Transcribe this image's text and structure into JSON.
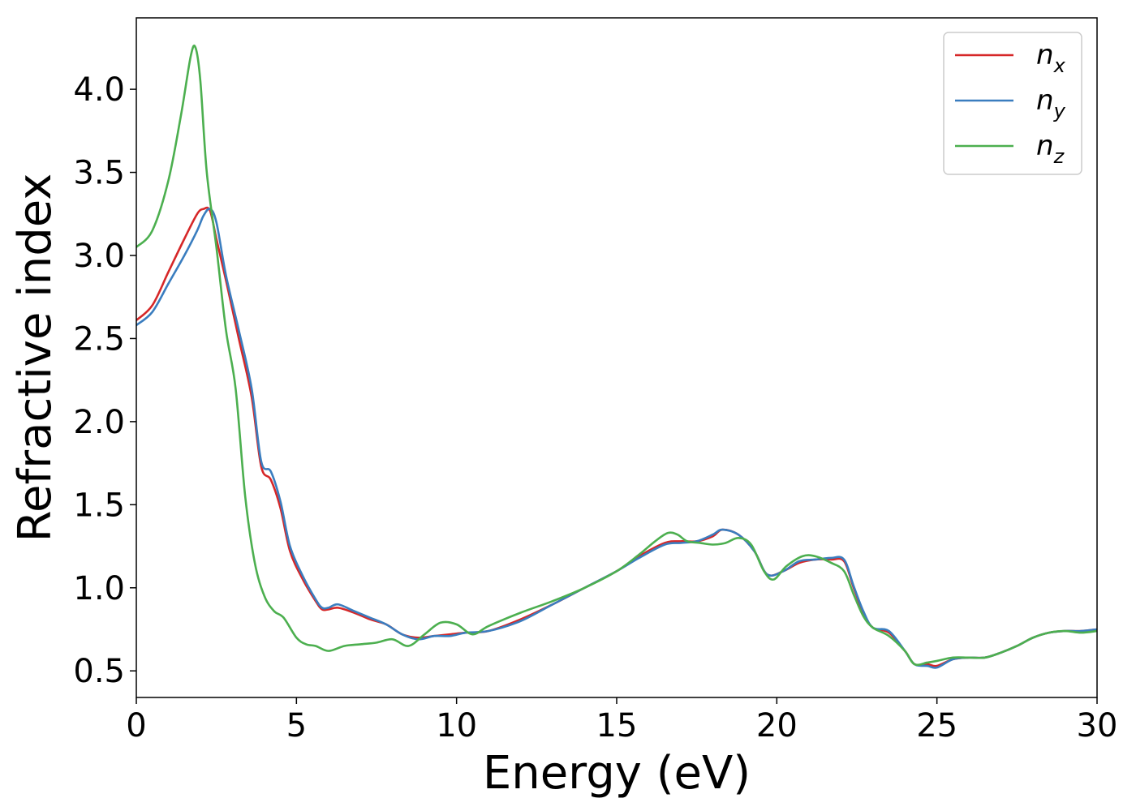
{
  "chart_data": {
    "type": "line",
    "xlabel": "Energy (eV)",
    "ylabel": "Refractive index",
    "xlim": [
      0,
      30
    ],
    "ylim": [
      0.34,
      4.43
    ],
    "xticks": [
      0,
      5,
      10,
      15,
      20,
      25,
      30
    ],
    "yticks": [
      0.5,
      1.0,
      1.5,
      2.0,
      2.5,
      3.0,
      3.5,
      4.0
    ],
    "xtick_labels": [
      "0",
      "5",
      "10",
      "15",
      "20",
      "25",
      "30"
    ],
    "ytick_labels": [
      "0.5",
      "1.0",
      "1.5",
      "2.0",
      "2.5",
      "3.0",
      "3.5",
      "4.0"
    ],
    "grid": false,
    "legend_position": "top-right",
    "series": [
      {
        "key": "nx",
        "legend_base": "n",
        "legend_sub": "x",
        "color": "#d62728",
        "x": [
          0,
          0.5,
          1.0,
          1.5,
          1.9,
          2.1,
          2.3,
          2.5,
          2.8,
          3.2,
          3.6,
          3.9,
          4.2,
          4.5,
          4.8,
          5.2,
          5.6,
          5.8,
          6.0,
          6.3,
          6.8,
          7.3,
          7.8,
          8.3,
          8.8,
          9.3,
          9.8,
          10.3,
          11.0,
          12.0,
          13.0,
          14.0,
          15.0,
          15.7,
          16.5,
          17.0,
          17.5,
          18.0,
          18.3,
          18.8,
          19.3,
          19.7,
          20.2,
          20.7,
          21.2,
          21.7,
          22.1,
          22.4,
          22.7,
          23.0,
          23.5,
          24.0,
          24.3,
          24.7,
          25.0,
          25.5,
          26.0,
          26.5,
          27.0,
          27.5,
          28.0,
          28.5,
          29.0,
          29.5,
          30.0
        ],
        "y": [
          2.61,
          2.7,
          2.9,
          3.1,
          3.25,
          3.28,
          3.27,
          3.1,
          2.85,
          2.5,
          2.15,
          1.73,
          1.65,
          1.48,
          1.22,
          1.05,
          0.92,
          0.87,
          0.87,
          0.88,
          0.85,
          0.81,
          0.78,
          0.72,
          0.7,
          0.71,
          0.72,
          0.73,
          0.74,
          0.81,
          0.9,
          1.0,
          1.1,
          1.19,
          1.27,
          1.28,
          1.28,
          1.31,
          1.35,
          1.32,
          1.22,
          1.08,
          1.1,
          1.15,
          1.17,
          1.17,
          1.16,
          1.0,
          0.85,
          0.76,
          0.73,
          0.62,
          0.54,
          0.54,
          0.53,
          0.57,
          0.58,
          0.58,
          0.61,
          0.65,
          0.7,
          0.73,
          0.74,
          0.74,
          0.75
        ]
      },
      {
        "key": "ny",
        "legend_base": "n",
        "legend_sub": "y",
        "color": "#3a7dbf",
        "x": [
          0,
          0.5,
          1.0,
          1.5,
          1.9,
          2.1,
          2.3,
          2.5,
          2.8,
          3.2,
          3.6,
          3.9,
          4.2,
          4.5,
          4.8,
          5.2,
          5.6,
          5.8,
          6.0,
          6.3,
          6.8,
          7.3,
          7.8,
          8.3,
          8.8,
          9.3,
          9.8,
          10.3,
          11.0,
          12.0,
          13.0,
          14.0,
          15.0,
          15.7,
          16.5,
          17.0,
          17.5,
          18.0,
          18.3,
          18.8,
          19.3,
          19.7,
          20.2,
          20.7,
          21.2,
          21.7,
          22.1,
          22.4,
          22.7,
          23.0,
          23.5,
          24.0,
          24.3,
          24.7,
          25.0,
          25.5,
          26.0,
          26.5,
          27.0,
          27.5,
          28.0,
          28.5,
          29.0,
          29.5,
          30.0
        ],
        "y": [
          2.58,
          2.66,
          2.83,
          3.0,
          3.15,
          3.24,
          3.28,
          3.2,
          2.88,
          2.55,
          2.2,
          1.76,
          1.7,
          1.52,
          1.25,
          1.07,
          0.93,
          0.88,
          0.88,
          0.9,
          0.86,
          0.82,
          0.78,
          0.72,
          0.69,
          0.71,
          0.71,
          0.73,
          0.74,
          0.8,
          0.9,
          1.0,
          1.1,
          1.18,
          1.26,
          1.27,
          1.28,
          1.32,
          1.35,
          1.32,
          1.22,
          1.08,
          1.1,
          1.16,
          1.17,
          1.18,
          1.17,
          1.01,
          0.86,
          0.76,
          0.74,
          0.62,
          0.54,
          0.53,
          0.52,
          0.57,
          0.58,
          0.58,
          0.61,
          0.65,
          0.7,
          0.73,
          0.74,
          0.74,
          0.75
        ]
      },
      {
        "key": "nz",
        "legend_base": "n",
        "legend_sub": "z",
        "color": "#4caf4f",
        "x": [
          0,
          0.5,
          1.0,
          1.4,
          1.7,
          1.85,
          2.0,
          2.2,
          2.5,
          2.8,
          3.1,
          3.4,
          3.7,
          4.0,
          4.3,
          4.6,
          5.0,
          5.3,
          5.6,
          6.0,
          6.5,
          7.0,
          7.5,
          8.0,
          8.5,
          9.0,
          9.5,
          10.0,
          10.5,
          11.0,
          12.0,
          13.0,
          14.0,
          15.0,
          15.7,
          16.2,
          16.6,
          16.9,
          17.2,
          17.6,
          18.0,
          18.4,
          18.8,
          19.2,
          19.6,
          19.9,
          20.3,
          20.8,
          21.2,
          21.7,
          22.1,
          22.4,
          22.7,
          23.0,
          23.5,
          24.0,
          24.3,
          24.7,
          25.0,
          25.5,
          26.0,
          26.5,
          27.0,
          27.5,
          28.0,
          28.5,
          29.0,
          29.5,
          30.0
        ],
        "y": [
          3.05,
          3.15,
          3.45,
          3.85,
          4.2,
          4.25,
          4.05,
          3.5,
          3.05,
          2.55,
          2.2,
          1.55,
          1.15,
          0.95,
          0.86,
          0.82,
          0.7,
          0.66,
          0.65,
          0.62,
          0.65,
          0.66,
          0.67,
          0.69,
          0.65,
          0.72,
          0.79,
          0.78,
          0.72,
          0.77,
          0.85,
          0.92,
          1.0,
          1.1,
          1.2,
          1.28,
          1.33,
          1.32,
          1.28,
          1.27,
          1.26,
          1.27,
          1.3,
          1.26,
          1.1,
          1.05,
          1.13,
          1.19,
          1.19,
          1.15,
          1.1,
          0.96,
          0.83,
          0.76,
          0.71,
          0.62,
          0.54,
          0.55,
          0.56,
          0.58,
          0.58,
          0.58,
          0.61,
          0.65,
          0.7,
          0.73,
          0.74,
          0.73,
          0.74
        ]
      }
    ]
  }
}
